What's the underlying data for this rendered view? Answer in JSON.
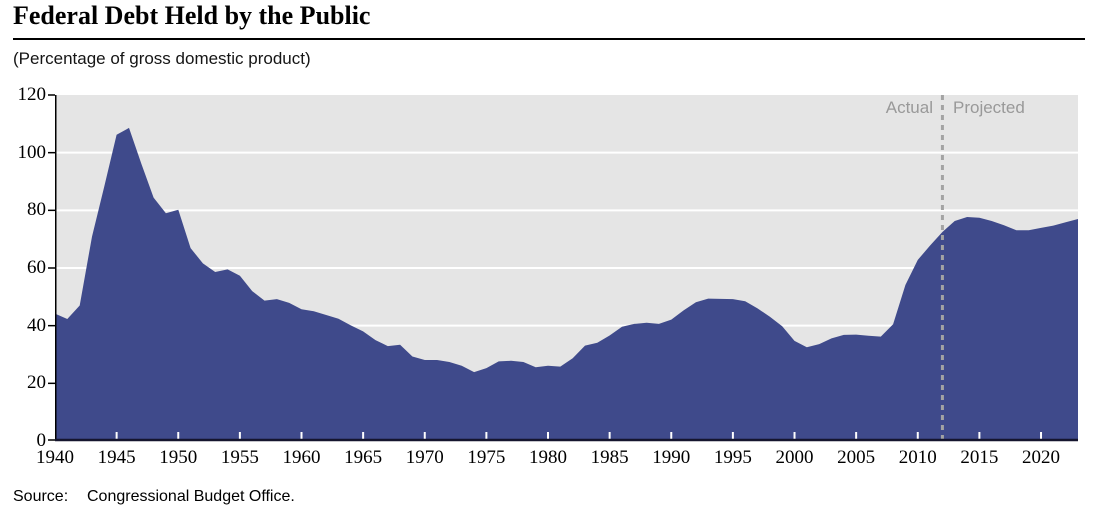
{
  "header": {
    "title": "Federal Debt Held by the Public",
    "subtitle": "(Percentage of gross domestic product)"
  },
  "chart_data": {
    "type": "area",
    "title": "Federal Debt Held by the Public",
    "units_note": "(Percentage of gross domestic product)",
    "xlabel": "",
    "ylabel": "",
    "xlim": [
      1940,
      2023
    ],
    "ylim": [
      0,
      120
    ],
    "y_ticks": [
      0,
      20,
      40,
      60,
      80,
      100,
      120
    ],
    "x_ticks": [
      1940,
      1945,
      1950,
      1955,
      1960,
      1965,
      1970,
      1975,
      1980,
      1985,
      1990,
      1995,
      2000,
      2005,
      2010,
      2015,
      2020
    ],
    "grid": "horizontal-white",
    "legend": "none",
    "divider_year": 2012,
    "annotations": {
      "actual": "Actual",
      "projected": "Projected"
    },
    "x": [
      1940,
      1941,
      1942,
      1943,
      1944,
      1945,
      1946,
      1947,
      1948,
      1949,
      1950,
      1951,
      1952,
      1953,
      1954,
      1955,
      1956,
      1957,
      1958,
      1959,
      1960,
      1961,
      1962,
      1963,
      1964,
      1965,
      1966,
      1967,
      1968,
      1969,
      1970,
      1971,
      1972,
      1973,
      1974,
      1975,
      1976,
      1977,
      1978,
      1979,
      1980,
      1981,
      1982,
      1983,
      1984,
      1985,
      1986,
      1987,
      1988,
      1989,
      1990,
      1991,
      1992,
      1993,
      1994,
      1995,
      1996,
      1997,
      1998,
      1999,
      2000,
      2001,
      2002,
      2003,
      2004,
      2005,
      2006,
      2007,
      2008,
      2009,
      2010,
      2011,
      2012,
      2013,
      2014,
      2015,
      2016,
      2017,
      2018,
      2019,
      2020,
      2021,
      2022,
      2023
    ],
    "series": [
      {
        "name": "Federal debt held by the public (% of GDP)",
        "values": [
          44.2,
          42.3,
          47.0,
          70.9,
          88.3,
          106.2,
          108.6,
          96.2,
          84.4,
          79.0,
          80.2,
          66.9,
          61.6,
          58.6,
          59.5,
          57.3,
          52.0,
          48.7,
          49.2,
          47.9,
          45.7,
          45.0,
          43.7,
          42.4,
          40.1,
          38.0,
          35.0,
          32.9,
          33.4,
          29.3,
          28.1,
          28.1,
          27.4,
          26.1,
          23.9,
          25.3,
          27.6,
          27.8,
          27.4,
          25.6,
          26.1,
          25.8,
          28.7,
          33.1,
          34.1,
          36.6,
          39.6,
          40.6,
          41.0,
          40.6,
          42.1,
          45.3,
          48.1,
          49.4,
          49.3,
          49.2,
          48.5,
          46.0,
          43.1,
          39.8,
          34.7,
          32.5,
          33.6,
          35.6,
          36.8,
          36.9,
          36.5,
          36.2,
          40.5,
          54.1,
          62.8,
          67.8,
          72.5,
          76.3,
          77.7,
          77.4,
          76.3,
          74.8,
          73.1,
          73.1,
          73.9,
          74.7,
          75.9,
          77.0
        ]
      }
    ],
    "colors": {
      "area": "#3f4a8b",
      "plot_bg": "#e5e5e5",
      "gridline": "#ffffff",
      "divider": "#a3a3a3",
      "annotation_text": "#999999",
      "axis": "#000000",
      "bottom_axis": "#15152e"
    }
  },
  "footer": {
    "source_label": "Source:",
    "source_text": "Congressional Budget Office."
  }
}
